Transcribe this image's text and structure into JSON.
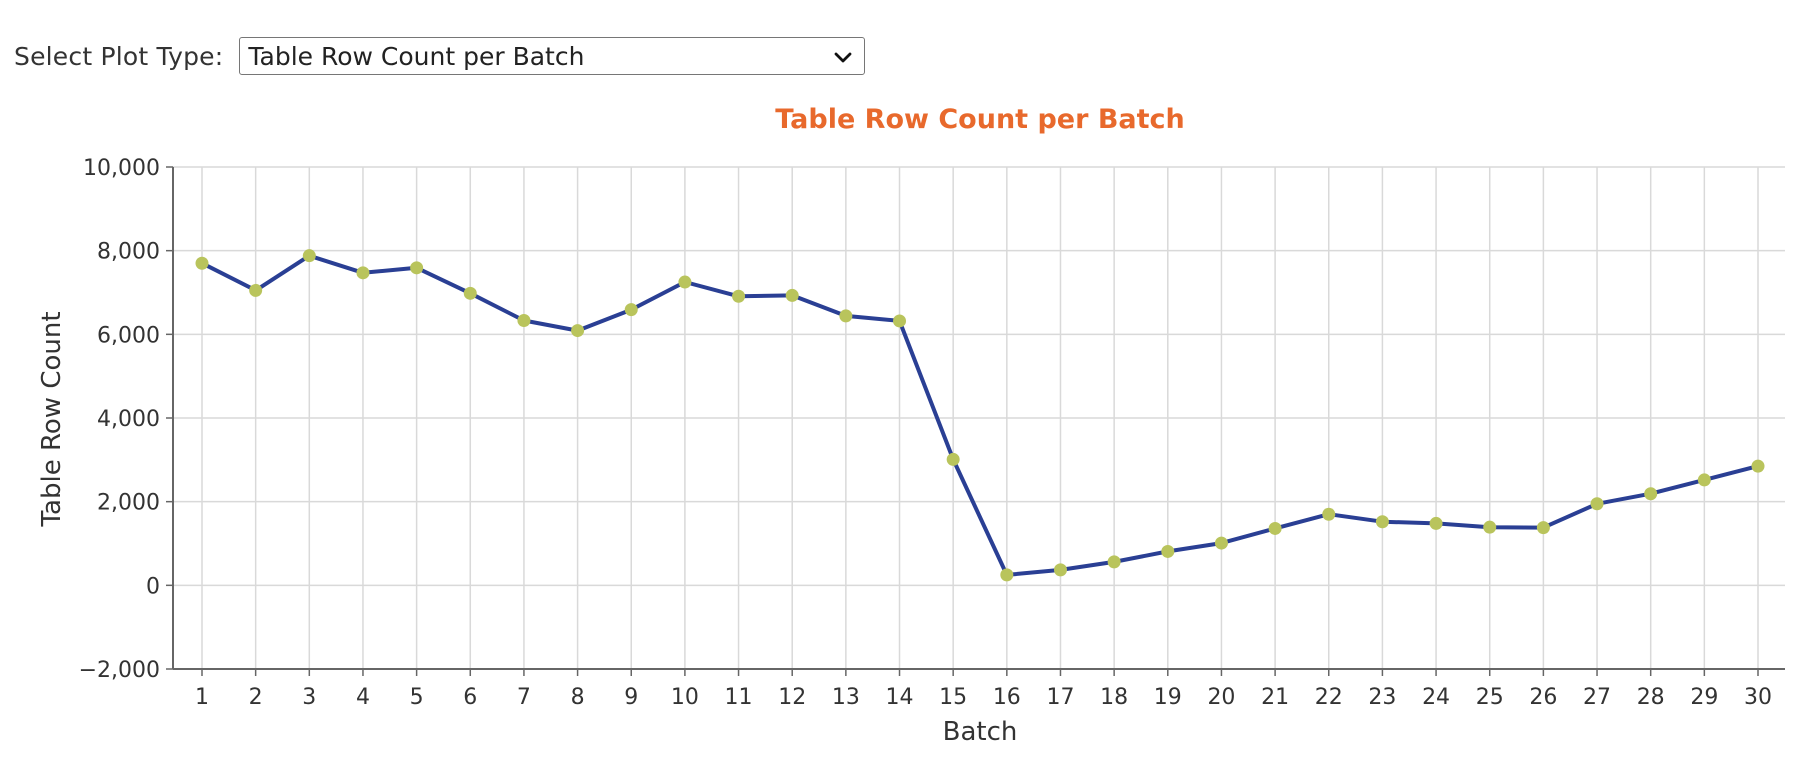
{
  "controls": {
    "label": "Select Plot Type:",
    "selected": "Table Row Count per Batch"
  },
  "colors": {
    "line": "#2a3f94",
    "marker": "#b9c45c",
    "title": "#e8692c",
    "grid": "#d9d9d9",
    "axis": "#666666"
  },
  "chart_data": {
    "type": "line",
    "title": "Table Row Count per Batch",
    "xlabel": "Batch",
    "ylabel": "Table Row Count",
    "ylim": [
      -2000,
      10000
    ],
    "yticks": [
      -2000,
      0,
      2000,
      4000,
      6000,
      8000,
      10000
    ],
    "ytick_labels": [
      "−2,000",
      "0",
      "2,000",
      "4,000",
      "6,000",
      "8,000",
      "10,000"
    ],
    "grid": true,
    "x": [
      1,
      2,
      3,
      4,
      5,
      6,
      7,
      8,
      9,
      10,
      11,
      12,
      13,
      14,
      15,
      16,
      17,
      18,
      19,
      20,
      21,
      22,
      23,
      24,
      25,
      26,
      27,
      28,
      29,
      30
    ],
    "series": [
      {
        "values": [
          7700,
          7050,
          7880,
          7470,
          7590,
          6980,
          6330,
          6090,
          6590,
          7250,
          6910,
          6930,
          6440,
          6320,
          3010,
          250,
          370,
          560,
          810,
          1010,
          1360,
          1700,
          1520,
          1480,
          1390,
          1380,
          1950,
          2190,
          2520,
          2850
        ]
      }
    ]
  }
}
